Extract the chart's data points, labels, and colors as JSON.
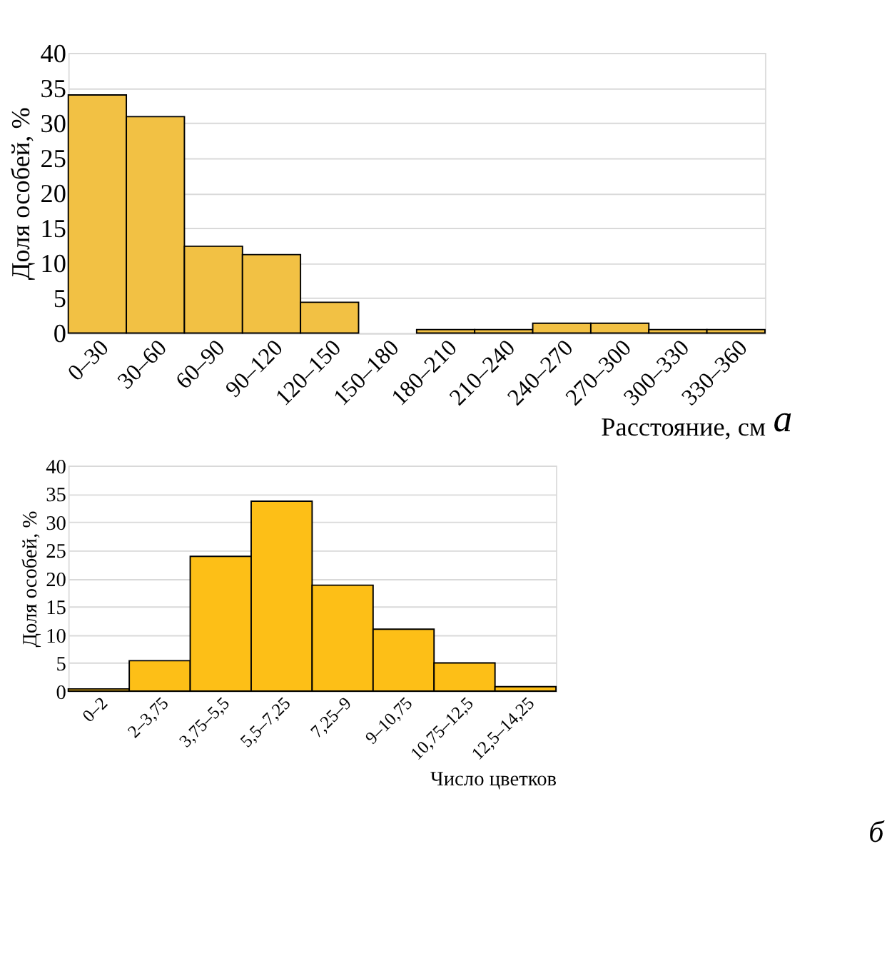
{
  "chart_data": [
    {
      "type": "bar",
      "ylabel": "Доля особей, %",
      "xlabel": "Расстояние, см",
      "annotations": [
        "а"
      ],
      "categories": [
        "0–30",
        "30–60",
        "60–90",
        "90–120",
        "120–150",
        "150–180",
        "180–210",
        "210–240",
        "240–270",
        "270–300",
        "300–330",
        "330–360"
      ],
      "values": [
        34.0,
        30.9,
        12.4,
        11.2,
        4.4,
        0,
        0.5,
        0.5,
        1.4,
        1.4,
        0.5,
        0.5
      ],
      "color": "#f2c144",
      "ylim": [
        0,
        40
      ],
      "yticks": [
        0,
        5,
        10,
        15,
        20,
        25,
        30,
        35,
        40
      ],
      "grid": "y"
    },
    {
      "type": "bar",
      "ylabel": "Доля особей, %",
      "xlabel": "Число цветков",
      "annotations": [
        "б"
      ],
      "categories": [
        "0–2",
        "2–3,75",
        "3,75–5,5",
        "5,5–7,25",
        "7,25–9",
        "9–10,75",
        "10,75–12,5",
        "12,5–14,25"
      ],
      "values": [
        0.4,
        5.4,
        23.9,
        33.7,
        18.8,
        11.0,
        5.0,
        0.8
      ],
      "color": "#fdbf17",
      "ylim": [
        0,
        40
      ],
      "yticks": [
        0,
        5,
        10,
        15,
        20,
        25,
        30,
        35,
        40
      ],
      "grid": "y"
    }
  ]
}
